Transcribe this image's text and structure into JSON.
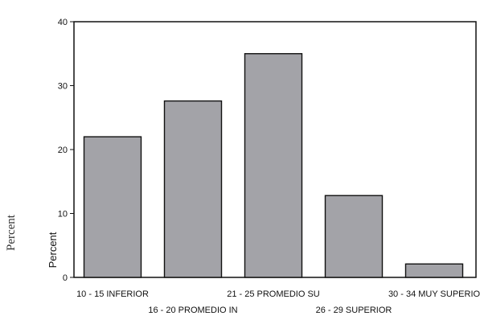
{
  "header_text": "",
  "outer_axis_label": "Percent",
  "chart_data": {
    "type": "bar",
    "title": "",
    "xlabel": "",
    "ylabel": "Percent",
    "categories": [
      "10 - 15  INFERIOR",
      "16 - 20  PROMEDIO IN",
      "21 - 25  PROMEDIO SU",
      "26 - 29  SUPERIOR",
      "30 - 34  MUY SUPERIO"
    ],
    "values": [
      22.0,
      27.6,
      35.0,
      12.8,
      2.1
    ],
    "ylim": [
      0,
      40
    ],
    "yticks": [
      "0",
      "10",
      "20",
      "30",
      "40"
    ],
    "grid": false,
    "bar_color": "#a3a3a8"
  }
}
